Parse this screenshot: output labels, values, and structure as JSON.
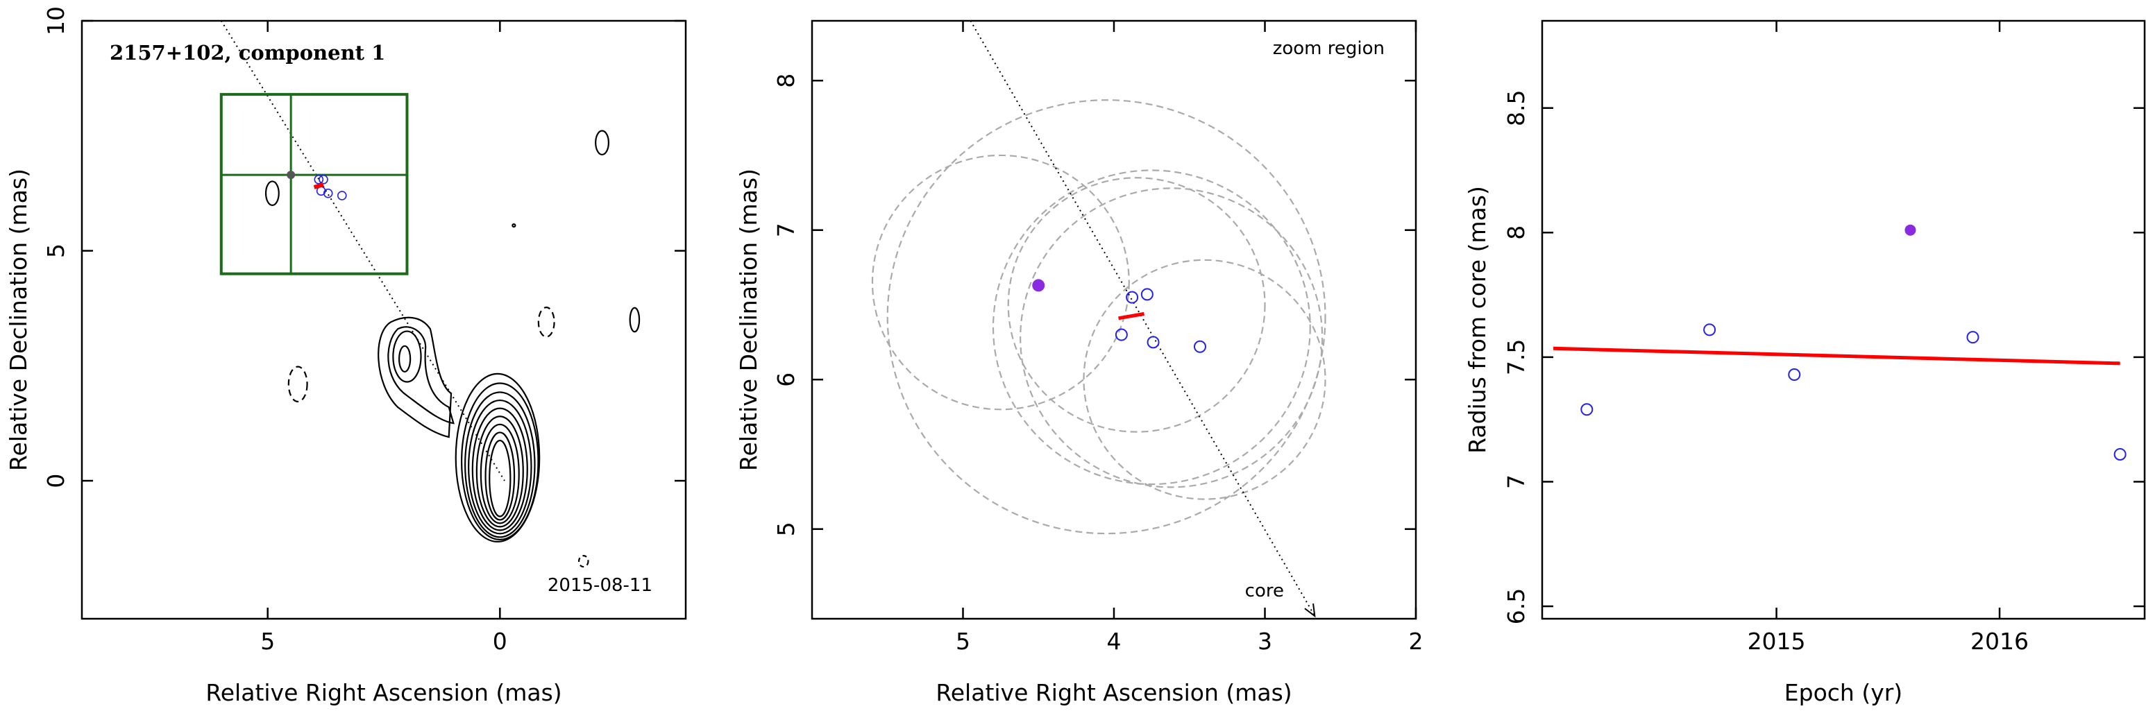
{
  "chart_data": [
    {
      "type": "contour",
      "title": "2157+102, component 1",
      "annotation": "2015-08-11",
      "xlabel": "Relative Right Ascension (mas)",
      "ylabel": "Relative Declination (mas)",
      "xlim": [
        9,
        -4
      ],
      "ylim": [
        -3,
        10
      ],
      "xticks": [
        5,
        0
      ],
      "yticks": [
        0,
        5,
        10
      ],
      "xtick_labels": [
        "5",
        "0"
      ],
      "ytick_labels": [
        "0",
        "5",
        "10"
      ],
      "zoom_box": {
        "x": [
          6,
          2
        ],
        "y": [
          4.5,
          8.4
        ]
      },
      "crosshair": {
        "x": 4.5,
        "y": 6.65
      },
      "component_points": [
        {
          "x": 3.9,
          "y": 6.55
        },
        {
          "x": 3.8,
          "y": 6.55
        },
        {
          "x": 3.85,
          "y": 6.3
        },
        {
          "x": 3.7,
          "y": 6.25
        },
        {
          "x": 3.4,
          "y": 6.2
        }
      ],
      "trajectory_line": {
        "x1": 6.0,
        "y1": 10.0,
        "x2": -0.1,
        "y2": 0.0
      },
      "colors": {
        "zoom_box": "#1a6b1a",
        "fit": "#ff0000",
        "points": "#2222ee",
        "contours": "#000000"
      }
    },
    {
      "type": "scatter",
      "annotation": "zoom region",
      "core_label": "core",
      "xlabel": "Relative Right Ascension (mas)",
      "ylabel": "Relative Declination (mas)",
      "xlim": [
        6,
        2
      ],
      "ylim": [
        4.4,
        8.4
      ],
      "xticks": [
        5,
        4,
        3,
        2
      ],
      "yticks": [
        5,
        6,
        7,
        8
      ],
      "xtick_labels": [
        "5",
        "4",
        "3",
        "2"
      ],
      "ytick_labels": [
        "5",
        "6",
        "7",
        "8"
      ],
      "points": [
        {
          "x": 3.88,
          "y": 6.55
        },
        {
          "x": 3.78,
          "y": 6.57
        },
        {
          "x": 3.95,
          "y": 6.3
        },
        {
          "x": 3.74,
          "y": 6.25
        },
        {
          "x": 3.43,
          "y": 6.22
        }
      ],
      "highlighted_point": {
        "x": 4.5,
        "y": 6.63
      },
      "fit_segment": {
        "x1": 3.97,
        "y1": 6.41,
        "x2": 3.8,
        "y2": 6.44
      },
      "beam_circles": [
        {
          "cx": 4.75,
          "cy": 6.65,
          "r": 0.85
        },
        {
          "cx": 4.05,
          "cy": 6.42,
          "r": 1.45
        },
        {
          "cx": 3.85,
          "cy": 6.5,
          "r": 0.85
        },
        {
          "cx": 3.75,
          "cy": 6.35,
          "r": 1.05
        },
        {
          "cx": 3.62,
          "cy": 6.28,
          "r": 1.0
        },
        {
          "cx": 3.4,
          "cy": 6.0,
          "r": 0.8
        }
      ],
      "trajectory_line": {
        "x1": 4.95,
        "y1": 8.4,
        "x2": 2.67,
        "y2": 4.4
      },
      "colors": {
        "points": "#2222ee",
        "highlight": "#8a2be2",
        "fit": "#ff0000",
        "circles": "#aaaaaa"
      }
    },
    {
      "type": "scatter",
      "xlabel": "Epoch (yr)",
      "ylabel": "Radius from core (mas)",
      "xlim": [
        2013.95,
        2016.65
      ],
      "ylim": [
        6.45,
        8.85
      ],
      "xticks": [
        2015,
        2016
      ],
      "yticks": [
        6.5,
        7,
        7.5,
        8,
        8.5
      ],
      "xtick_labels": [
        "2015",
        "2016"
      ],
      "ytick_labels": [
        "6.5",
        "7",
        "7.5",
        "8",
        "8.5"
      ],
      "points": [
        {
          "x": 2014.15,
          "y": 7.29
        },
        {
          "x": 2014.7,
          "y": 7.61
        },
        {
          "x": 2015.08,
          "y": 7.43
        },
        {
          "x": 2015.88,
          "y": 7.58
        },
        {
          "x": 2016.54,
          "y": 7.11
        }
      ],
      "highlighted_point": {
        "x": 2015.6,
        "y": 8.01
      },
      "fit_line": {
        "x1": 2014.0,
        "y1": 7.535,
        "x2": 2016.54,
        "y2": 7.475
      },
      "colors": {
        "points": "#2222ee",
        "highlight": "#8a2be2",
        "fit": "#ff0000"
      }
    }
  ]
}
